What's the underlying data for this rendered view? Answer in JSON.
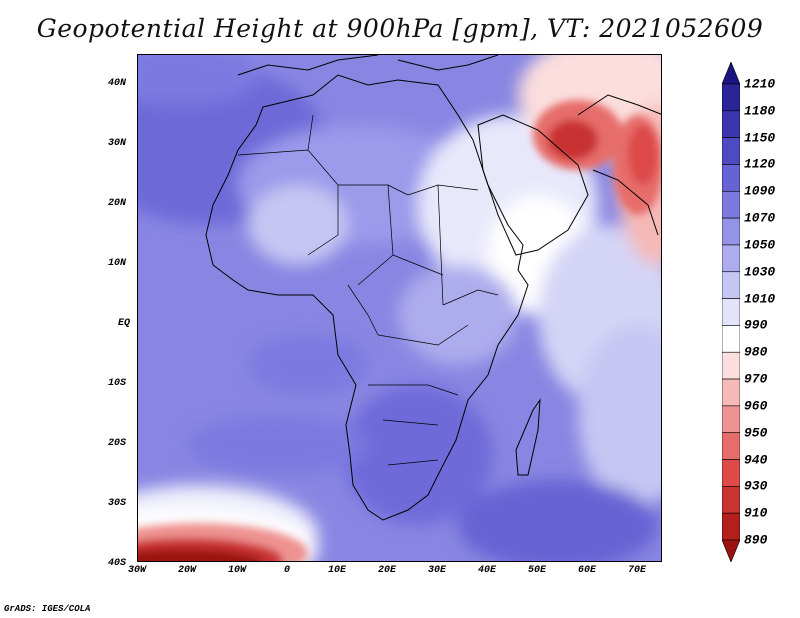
{
  "title": "Geopotential Height at 900hPa [gpm], VT: 2021052609",
  "credit": "GrADS: IGES/COLA",
  "map": {
    "lon_labels": [
      "30W",
      "20W",
      "10W",
      "0",
      "10E",
      "20E",
      "30E",
      "40E",
      "50E",
      "60E",
      "70E"
    ],
    "lat_labels": [
      "40N",
      "30N",
      "20N",
      "10N",
      "EQ",
      "10S",
      "20S",
      "30S",
      "40S"
    ]
  },
  "colorbar": {
    "levels": [
      "1210",
      "1180",
      "1150",
      "1120",
      "1090",
      "1070",
      "1050",
      "1030",
      "1010",
      "990",
      "980",
      "970",
      "960",
      "950",
      "940",
      "930",
      "910",
      "890"
    ],
    "colors": [
      "#1b1582",
      "#2b2497",
      "#3c36ad",
      "#4e4bc2",
      "#6664d4",
      "#7c7ae0",
      "#9493e8",
      "#adaced",
      "#c6c6f3",
      "#e3e3f9",
      "#ffffff",
      "#fbdedd",
      "#f5b9b7",
      "#ee9391",
      "#e66d6b",
      "#dd4a48",
      "#c93331",
      "#b21f1d",
      "#9a1210"
    ]
  }
}
